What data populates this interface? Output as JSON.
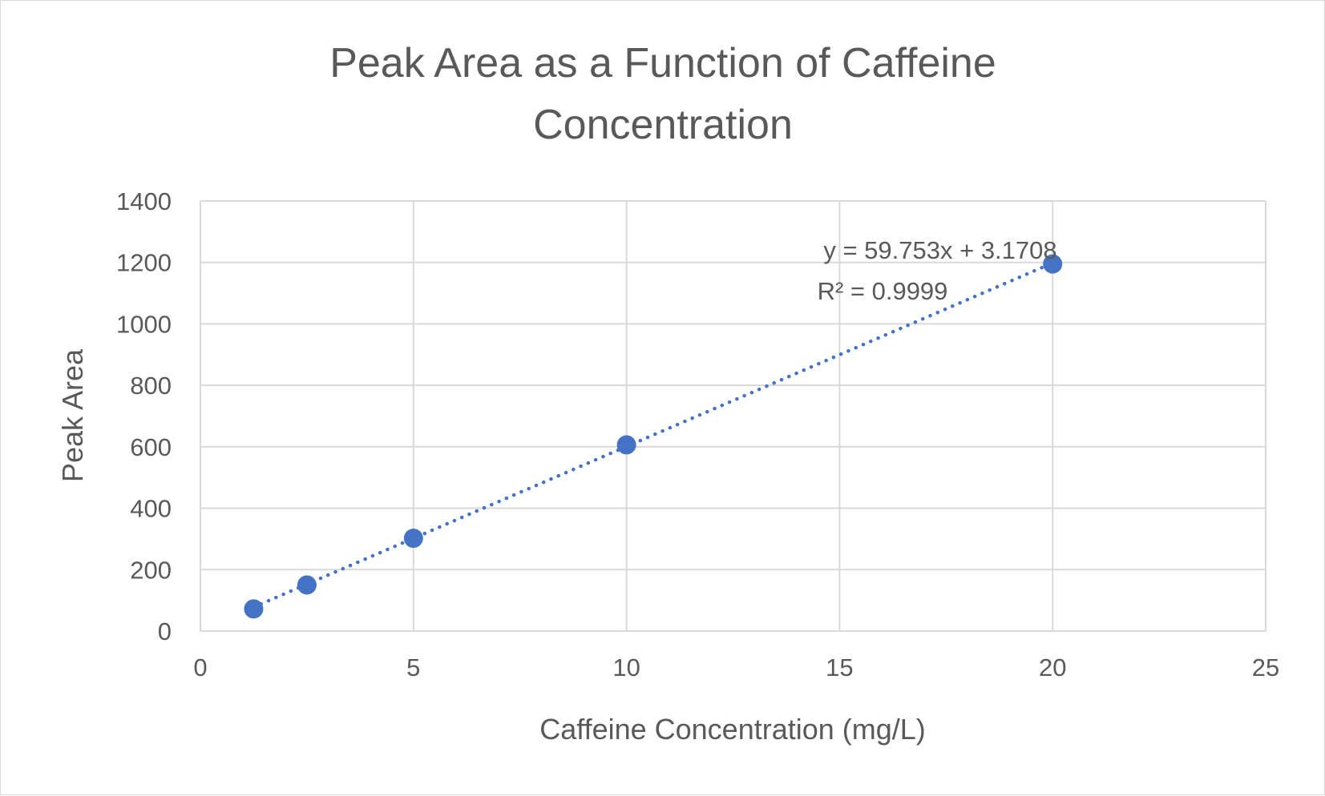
{
  "chart_data": {
    "type": "scatter",
    "title_lines": [
      "Peak Area as a Function of Caffeine",
      "Concentration"
    ],
    "xlabel": "Caffeine Concentration (mg/L)",
    "ylabel": "Peak Area",
    "xlim": [
      0,
      25
    ],
    "ylim": [
      0,
      1400
    ],
    "xticks": [
      0,
      5,
      10,
      15,
      20,
      25
    ],
    "yticks": [
      0,
      200,
      400,
      600,
      800,
      1000,
      1200,
      1400
    ],
    "grid": true,
    "series": [
      {
        "points": [
          {
            "x": 1.25,
            "y": 72
          },
          {
            "x": 2.5,
            "y": 150
          },
          {
            "x": 5,
            "y": 302
          },
          {
            "x": 10,
            "y": 606
          },
          {
            "x": 20,
            "y": 1195
          }
        ],
        "color": "#4472c4"
      }
    ],
    "trendline": {
      "type": "linear",
      "slope": 59.753,
      "intercept": 3.1708,
      "x_range": [
        1.25,
        20
      ],
      "style": "dotted",
      "color": "#4472c4",
      "equation_label": "y = 59.753x + 3.1708",
      "r2_label": "R² = 0.9999"
    },
    "colors": {
      "gridline": "#d9d9d9",
      "text": "#595959",
      "marker": "#4472c4"
    }
  }
}
